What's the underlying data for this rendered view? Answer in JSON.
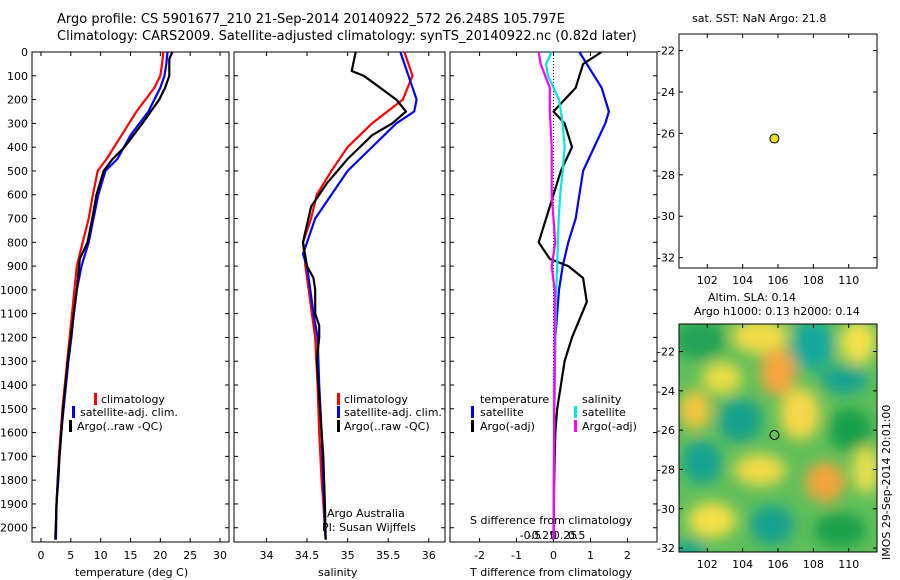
{
  "header": {
    "title_line1": "Argo profile: CS 5901677_210 21-Sep-2014 20140922_572 26.248S 105.797E",
    "title_line2": "Climatology: CARS2009. Satellite-adjusted climatology: synTS_20140922.nc (0.82d later)"
  },
  "depth_ticks": [
    0,
    100,
    200,
    300,
    400,
    500,
    600,
    700,
    800,
    900,
    1000,
    1100,
    1200,
    1300,
    1400,
    1500,
    1600,
    1700,
    1800,
    1900,
    2000
  ],
  "panels": {
    "temperature": {
      "xlabel": "temperature (deg C)",
      "xlim": [
        -1.5,
        31.5
      ],
      "ticks": [
        0,
        5,
        10,
        15,
        20,
        25,
        30
      ],
      "tick_labels": [
        "0",
        "5",
        "10",
        "15",
        "20",
        "25",
        "30"
      ]
    },
    "salinity": {
      "xlabel": "salinity",
      "xlim": [
        33.6,
        36.2
      ],
      "ticks": [
        34,
        34.5,
        35,
        35.5,
        36
      ],
      "tick_labels": [
        "34",
        "34.5",
        "35",
        "35.5",
        "36"
      ]
    },
    "difference": {
      "xlabel_bottom": "T difference from climatology",
      "xlabel_top": "S difference from climatology",
      "xlim": [
        -2.8,
        2.8
      ],
      "t_ticks": [
        -2,
        -1,
        0,
        1,
        2
      ],
      "t_tick_labels": [
        "-2",
        "-1",
        "0",
        "1",
        "2"
      ],
      "s_ticks": [
        -0.5,
        -0.25,
        0,
        0.25,
        0.5
      ],
      "s_tick_labels": [
        "-0.5",
        "-0.25",
        "0",
        "0.25",
        "0.5"
      ]
    }
  },
  "legend_main": {
    "items": [
      {
        "label": "climatology",
        "color": "#ff0000"
      },
      {
        "label": "satellite-adj. clim.",
        "color": "#0000ff"
      },
      {
        "label": "Argo(..raw -QC)",
        "color": "#000000"
      }
    ]
  },
  "legend_diff": {
    "temperature_heading": "temperature",
    "salinity_heading": "salinity",
    "items_left": [
      {
        "label": "satellite",
        "color": "#0000ff"
      },
      {
        "label": "Argo(-adj)",
        "color": "#000000"
      }
    ],
    "items_right": [
      {
        "label": "satellite",
        "color": "#00e5e5"
      },
      {
        "label": "Argo(-adj)",
        "color": "#ff00ff"
      }
    ]
  },
  "credit": {
    "line1": "Argo Australia",
    "line2": "PI: Susan Wijffels"
  },
  "map_sst": {
    "title": "sat. SST: NaN Argo: 21.8",
    "lat_ticks": [
      -22,
      -24,
      -26,
      -28,
      -30,
      -32
    ],
    "lat_tick_labels": [
      "-22",
      "-24",
      "-26",
      "-28",
      "-30",
      "-32"
    ],
    "lon_ticks": [
      102,
      104,
      106,
      108,
      110
    ],
    "lon_tick_labels": [
      "102",
      "104",
      "106",
      "108",
      "110"
    ],
    "float_lat": -26.248,
    "float_lon": 105.797
  },
  "map_sla": {
    "title": "Altim. SLA: 0.14",
    "subtitle": "Argo h1000: 0.13 h2000: 0.14",
    "lat_ticks": [
      -22,
      -24,
      -26,
      -28,
      -30,
      -32
    ],
    "lat_tick_labels": [
      "-22",
      "-24",
      "-26",
      "-28",
      "-30",
      "-32"
    ],
    "lon_ticks": [
      102,
      104,
      106,
      108,
      110
    ],
    "lon_tick_labels": [
      "102",
      "104",
      "106",
      "108",
      "110"
    ]
  },
  "stamp": "IMOS 29-Sep-2014 20:01:00",
  "chart_data": [
    {
      "type": "line",
      "title": "",
      "xlabel": "temperature (deg C)",
      "ylabel": "",
      "xlim": [
        -1.5,
        31.5
      ],
      "ylim": [
        2060,
        0
      ],
      "series": [
        {
          "name": "climatology",
          "color": "#ff0000",
          "x": [
            20.5,
            20.3,
            20.0,
            19.0,
            16.0,
            13.5,
            11.0,
            9.5,
            8.7,
            8.0,
            7.0,
            6.0,
            5.6,
            5.2,
            4.8,
            4.4,
            4.0,
            3.6,
            3.3,
            3.0,
            2.8,
            2.6,
            2.5
          ],
          "y": [
            0,
            50,
            100,
            150,
            250,
            350,
            450,
            500,
            600,
            700,
            800,
            900,
            1000,
            1100,
            1200,
            1300,
            1400,
            1500,
            1600,
            1700,
            1800,
            1900,
            2050
          ]
        },
        {
          "name": "satellite-adj. clim.",
          "color": "#0000ff",
          "x": [
            21.2,
            21.0,
            20.7,
            20.0,
            18.0,
            15.0,
            12.8,
            10.8,
            9.6,
            8.8,
            8.0,
            6.8,
            6.0,
            5.5,
            5.1,
            4.6,
            4.2,
            3.8,
            3.4,
            3.1,
            2.8,
            2.6,
            2.5
          ],
          "y": [
            0,
            50,
            100,
            150,
            250,
            350,
            450,
            500,
            600,
            700,
            800,
            900,
            1000,
            1100,
            1200,
            1300,
            1400,
            1500,
            1600,
            1700,
            1800,
            1900,
            2050
          ]
        },
        {
          "name": "Argo(..raw -QC)",
          "color": "#000000",
          "x": [
            22.0,
            21.5,
            21.5,
            20.8,
            19.8,
            17.0,
            14.0,
            12.0,
            10.5,
            9.3,
            8.6,
            7.8,
            6.5,
            6.0,
            5.5,
            5.0,
            4.5,
            4.1,
            3.7,
            3.4,
            3.1,
            2.9,
            2.6,
            2.4
          ],
          "y": [
            0,
            30,
            100,
            150,
            200,
            300,
            400,
            450,
            500,
            600,
            700,
            800,
            870,
            1000,
            1100,
            1200,
            1300,
            1400,
            1500,
            1600,
            1700,
            1800,
            1900,
            2050
          ]
        }
      ]
    },
    {
      "type": "line",
      "title": "",
      "xlabel": "salinity",
      "ylabel": "",
      "xlim": [
        33.6,
        36.2
      ],
      "ylim": [
        2060,
        0
      ],
      "series": [
        {
          "name": "climatology",
          "color": "#ff0000",
          "x": [
            35.7,
            35.75,
            35.8,
            35.68,
            35.3,
            35.0,
            34.8,
            34.62,
            34.55,
            34.45,
            34.48,
            34.52,
            34.56,
            34.6,
            34.63,
            34.65,
            34.68,
            34.7,
            34.72,
            34.73
          ],
          "y": [
            0,
            50,
            100,
            200,
            300,
            400,
            500,
            600,
            700,
            800,
            900,
            1000,
            1100,
            1200,
            1400,
            1600,
            1800,
            1900,
            2000,
            2050
          ]
        },
        {
          "name": "satellite-adj. clim.",
          "color": "#0000ff",
          "x": [
            35.65,
            35.7,
            35.75,
            35.85,
            35.82,
            35.6,
            35.3,
            35.0,
            34.8,
            34.6,
            34.45,
            34.5,
            34.54,
            34.58,
            34.63,
            34.65,
            34.68,
            34.7,
            34.72,
            34.73
          ],
          "y": [
            0,
            50,
            100,
            200,
            250,
            300,
            400,
            500,
            600,
            700,
            850,
            900,
            1000,
            1100,
            1200,
            1400,
            1600,
            1800,
            2000,
            2050
          ]
        },
        {
          "name": "Argo(..raw -QC)",
          "color": "#000000",
          "x": [
            35.1,
            35.05,
            35.2,
            35.4,
            35.6,
            35.72,
            35.55,
            35.3,
            35.0,
            34.75,
            34.55,
            34.45,
            34.5,
            34.58,
            34.6,
            34.6,
            34.65,
            34.65,
            34.62,
            34.66,
            34.7,
            34.72,
            34.73
          ],
          "y": [
            0,
            80,
            100,
            150,
            200,
            250,
            300,
            350,
            450,
            550,
            650,
            800,
            900,
            950,
            1000,
            1100,
            1150,
            1200,
            1300,
            1500,
            1700,
            1900,
            2050
          ]
        }
      ]
    },
    {
      "type": "line",
      "title": "",
      "xlabel": "T difference from climatology",
      "ylabel": "",
      "xlim": [
        -2.8,
        2.8
      ],
      "ylim": [
        2060,
        0
      ],
      "series": [
        {
          "name": "satellite",
          "color": "#0000ff",
          "x": [
            0.7,
            0.9,
            1.3,
            1.5,
            1.4,
            1.1,
            0.8,
            0.6,
            0.4,
            0.25,
            0.15,
            0.1,
            0.05,
            0.03,
            0.02,
            0.0
          ],
          "y": [
            0,
            50,
            150,
            250,
            300,
            400,
            500,
            700,
            800,
            900,
            1000,
            1100,
            1200,
            1400,
            1600,
            2050
          ]
        },
        {
          "name": "Argo(-adj)",
          "color": "#000000",
          "x": [
            1.3,
            0.8,
            0.6,
            0.3,
            0.0,
            0.3,
            0.5,
            0.2,
            0.0,
            -0.2,
            -0.4,
            -0.1,
            0.4,
            0.8,
            0.9,
            0.5,
            0.3,
            0.2,
            0.1,
            0.05,
            0.02,
            0.0
          ],
          "y": [
            0,
            50,
            150,
            200,
            250,
            300,
            400,
            500,
            600,
            700,
            800,
            870,
            900,
            950,
            1050,
            1200,
            1300,
            1400,
            1500,
            1600,
            1800,
            2050
          ]
        },
        {
          "name": "satellite",
          "color": "#00e5e5",
          "x": [
            -0.05,
            -0.2,
            -0.15,
            0.0,
            0.15,
            0.25,
            0.3,
            0.25,
            0.18,
            0.14,
            0.12,
            0.1,
            0.07,
            0.05,
            0.03,
            0.02,
            0.01,
            0.0
          ],
          "y": [
            0,
            50,
            100,
            150,
            200,
            300,
            400,
            500,
            600,
            700,
            800,
            900,
            1000,
            1200,
            1400,
            1600,
            1800,
            2050
          ]
        },
        {
          "name": "Argo(-adj)",
          "color": "#ff00ff",
          "x": [
            -0.4,
            -0.35,
            -0.1,
            -0.1,
            -0.05,
            -0.05,
            0.0,
            0.05,
            -0.05,
            0.03,
            0.03,
            0.02,
            0.01,
            0.0
          ],
          "y": [
            0,
            50,
            150,
            250,
            400,
            600,
            700,
            800,
            900,
            1000,
            1300,
            1500,
            1800,
            2050
          ]
        }
      ]
    }
  ]
}
